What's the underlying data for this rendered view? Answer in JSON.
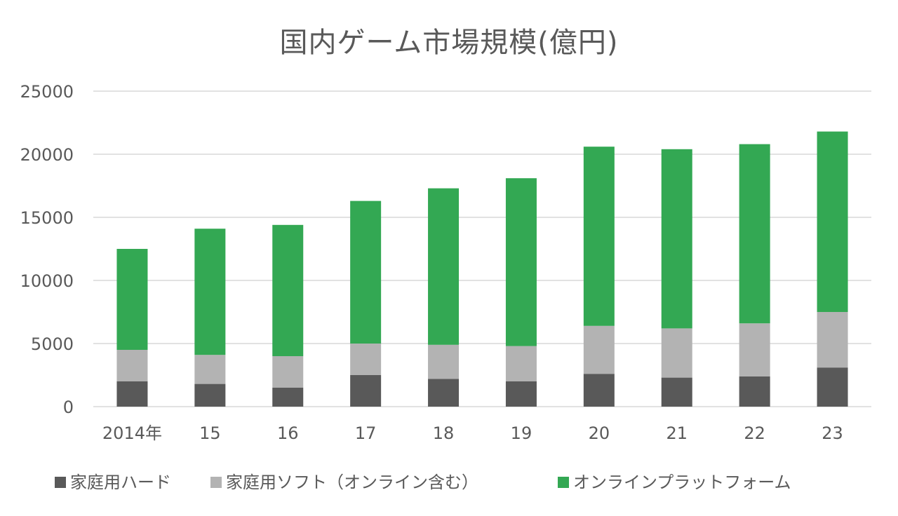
{
  "chart_data": {
    "type": "bar",
    "stacked": true,
    "title": "国内ゲーム市場規模(億円)",
    "xlabel": "",
    "ylabel": "",
    "ylim": [
      0,
      25000
    ],
    "yticks": [
      0,
      5000,
      10000,
      15000,
      20000,
      25000
    ],
    "yticks_labels": [
      "0",
      "5000",
      "10000",
      "15000",
      "20000",
      "25000"
    ],
    "grid": true,
    "legend": "bottom",
    "categories": [
      "2014年",
      "15",
      "16",
      "17",
      "18",
      "19",
      "20",
      "21",
      "22",
      "23"
    ],
    "series": [
      {
        "name": "家庭用ハード",
        "color": "#595959",
        "values": [
          2000,
          1800,
          1500,
          2500,
          2200,
          2000,
          2600,
          2300,
          2400,
          3100
        ]
      },
      {
        "name": "家庭用ソフト（オンライン含む）",
        "color": "#b3b3b3",
        "values": [
          2500,
          2300,
          2500,
          2500,
          2700,
          2800,
          3800,
          3900,
          4200,
          4400
        ]
      },
      {
        "name": "オンラインプラットフォーム",
        "color": "#33a853",
        "values": [
          8000,
          10000,
          10400,
          11300,
          12400,
          13300,
          14200,
          14200,
          14200,
          14300
        ]
      }
    ]
  }
}
